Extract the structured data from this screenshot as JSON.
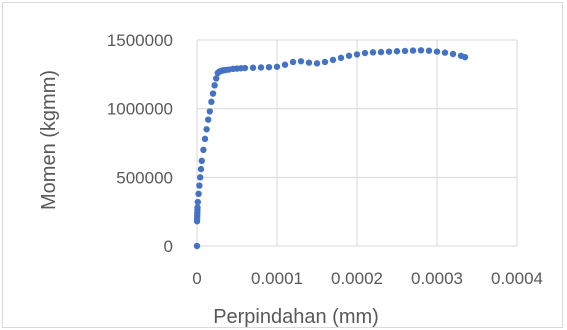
{
  "chart_data": {
    "type": "scatter",
    "title": "",
    "xlabel": "Perpindahan (mm)",
    "ylabel": "Momen (kgmm)",
    "xlim": [
      0,
      0.0004
    ],
    "ylim": [
      0,
      1500000
    ],
    "x_ticks": [
      0,
      0.0001,
      0.0002,
      0.0003,
      0.0004
    ],
    "x_tick_labels": [
      "0",
      "0.0001",
      "0.0002",
      "0.0003",
      "0.0004"
    ],
    "y_ticks": [
      0,
      500000,
      1000000,
      1500000
    ],
    "y_tick_labels": [
      "0",
      "500000",
      "1000000",
      "1500000"
    ],
    "grid": true,
    "legend": "none",
    "series_color": "#4472c4",
    "series": [
      {
        "x": [
          0,
          1e-07,
          2e-07,
          3e-07,
          4e-07,
          5e-07,
          6e-07,
          1e-06,
          2e-06,
          3e-06,
          4e-06,
          5e-06,
          6e-06,
          8e-06,
          1e-05,
          1.2e-05,
          1.4e-05,
          1.6e-05,
          1.8e-05,
          2e-05,
          2.2e-05,
          2.4e-05,
          2.6e-05,
          2.8e-05,
          3e-05,
          3.2e-05,
          3.4e-05,
          3.6e-05,
          4e-05,
          4.5e-05,
          5e-05,
          5.5e-05,
          6e-05,
          7e-05,
          8e-05,
          9e-05,
          0.0001,
          0.00011,
          0.00012,
          0.00013,
          0.00014,
          0.00015,
          0.00016,
          0.00017,
          0.00018,
          0.00019,
          0.0002,
          0.00021,
          0.00022,
          0.00023,
          0.00024,
          0.00025,
          0.00026,
          0.00027,
          0.00028,
          0.00029,
          0.0003,
          0.00031,
          0.00032,
          0.00033,
          0.000335
        ],
        "y": [
          0,
          180000,
          200000,
          220000,
          240000,
          260000,
          280000,
          320000,
          380000,
          440000,
          500000,
          560000,
          620000,
          700000,
          780000,
          850000,
          920000,
          980000,
          1050000,
          1110000,
          1170000,
          1220000,
          1260000,
          1270000,
          1275000,
          1278000,
          1280000,
          1282000,
          1285000,
          1290000,
          1292000,
          1294000,
          1296000,
          1298000,
          1300000,
          1302000,
          1305000,
          1320000,
          1340000,
          1345000,
          1335000,
          1330000,
          1340000,
          1355000,
          1370000,
          1385000,
          1395000,
          1405000,
          1410000,
          1412000,
          1415000,
          1418000,
          1420000,
          1423000,
          1425000,
          1422000,
          1415000,
          1408000,
          1398000,
          1385000,
          1375000
        ]
      }
    ]
  }
}
